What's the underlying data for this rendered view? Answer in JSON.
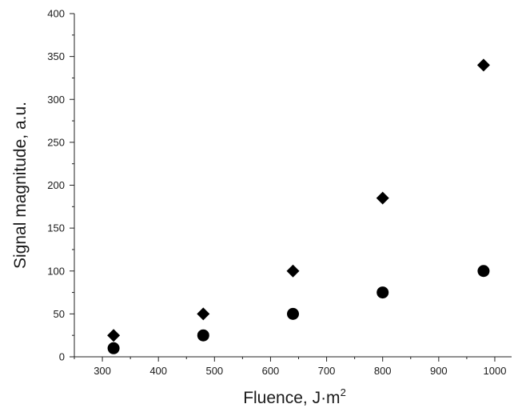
{
  "chart_data": {
    "type": "scatter",
    "xlabel": "Fluence, J·m",
    "xlabel_superscript": "2",
    "ylabel": "Signal magnitude,  a.u.",
    "xlim": [
      250,
      1030
    ],
    "ylim": [
      0,
      400
    ],
    "grid": false,
    "legend": "none",
    "x_ticks": [
      300,
      400,
      500,
      600,
      700,
      800,
      900,
      1000
    ],
    "y_ticks": [
      0,
      50,
      100,
      150,
      200,
      250,
      300,
      350,
      400
    ],
    "series": [
      {
        "marker": "diamond",
        "color": "#000000",
        "points": [
          {
            "x": 320,
            "y": 25
          },
          {
            "x": 480,
            "y": 50
          },
          {
            "x": 640,
            "y": 100
          },
          {
            "x": 800,
            "y": 185
          },
          {
            "x": 980,
            "y": 340
          }
        ]
      },
      {
        "marker": "circle",
        "color": "#000000",
        "points": [
          {
            "x": 320,
            "y": 10
          },
          {
            "x": 480,
            "y": 25
          },
          {
            "x": 640,
            "y": 50
          },
          {
            "x": 800,
            "y": 75
          },
          {
            "x": 980,
            "y": 100
          }
        ]
      }
    ]
  }
}
